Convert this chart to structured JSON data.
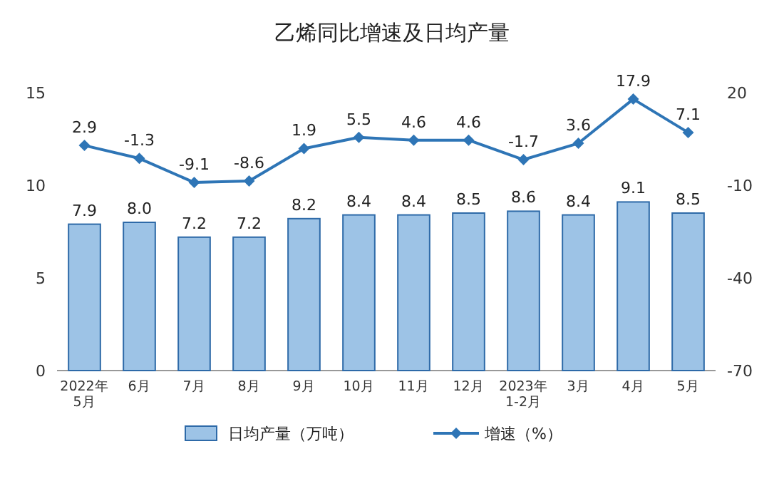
{
  "chart_data": {
    "type": "bar",
    "title": "乙烯同比增速及日均产量",
    "categories": [
      "2022年\n5月",
      "6月",
      "7月",
      "8月",
      "9月",
      "10月",
      "11月",
      "12月",
      "2023年\n1-2月",
      "3月",
      "4月",
      "5月"
    ],
    "series": [
      {
        "name": "日均产量（万吨）",
        "color": "#9dc3e6",
        "values": [
          7.9,
          8.0,
          7.2,
          7.2,
          8.2,
          8.4,
          8.4,
          8.5,
          8.6,
          8.4,
          9.1,
          8.5
        ],
        "value_labels": [
          "7.9",
          "8.0",
          "7.2",
          "7.2",
          "8.2",
          "8.4",
          "8.4",
          "8.5",
          "8.6",
          "8.4",
          "9.1",
          "8.5"
        ]
      },
      {
        "name": "增速（%）",
        "type": "line",
        "axis": "y2",
        "color": "#2e75b6",
        "marker": "diamond",
        "values": [
          2.9,
          -1.3,
          -9.1,
          -8.6,
          1.9,
          5.5,
          4.6,
          4.6,
          -1.7,
          3.6,
          17.9,
          7.1
        ]
      }
    ],
    "ylim": [
      0,
      15
    ],
    "yticks": [
      0,
      5,
      10,
      15
    ],
    "y2lim": [
      -70,
      20
    ],
    "y2ticks": [
      -70,
      -40,
      -10,
      20
    ],
    "data_labels": true,
    "legend": "bottom",
    "grid": false
  }
}
